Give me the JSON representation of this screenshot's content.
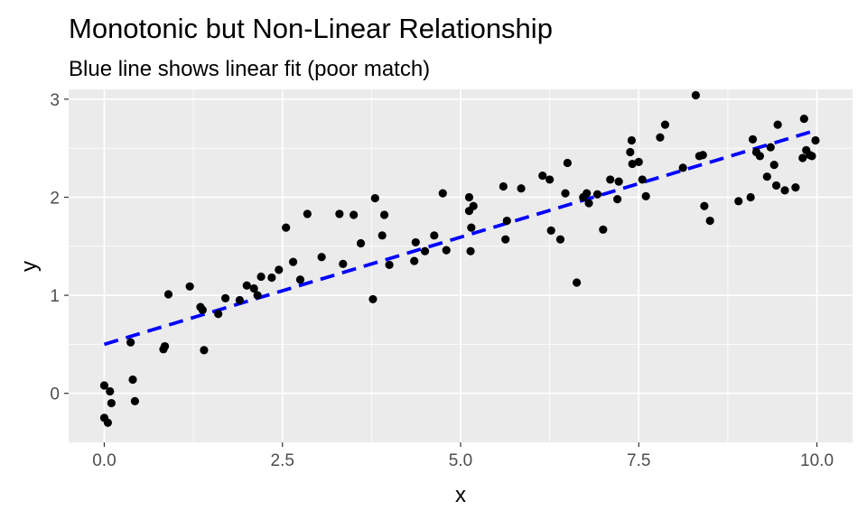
{
  "chart_data": {
    "type": "scatter",
    "title": "Monotonic but Non-Linear Relationship",
    "subtitle": "Blue line shows linear fit (poor match)",
    "xlabel": "x",
    "ylabel": "y",
    "xlim": [
      -0.5,
      10.5
    ],
    "ylim": [
      -0.5,
      3.1
    ],
    "x_ticks": [
      0.0,
      2.5,
      5.0,
      7.5,
      10.0
    ],
    "x_tick_labels": [
      "0.0",
      "2.5",
      "5.0",
      "7.5",
      "10.0"
    ],
    "y_ticks": [
      0,
      1,
      2,
      3
    ],
    "y_tick_labels": [
      "0",
      "1",
      "2",
      "3"
    ],
    "grid": true,
    "colors": {
      "points": "#000000",
      "fit_line": "#0000ff",
      "panel": "#ebebeb",
      "grid": "#ffffff"
    },
    "points": [
      {
        "x": 0.0,
        "y": 0.08
      },
      {
        "x": 0.0,
        "y": -0.25
      },
      {
        "x": 0.05,
        "y": -0.3
      },
      {
        "x": 0.08,
        "y": 0.02
      },
      {
        "x": 0.1,
        "y": -0.1
      },
      {
        "x": 0.37,
        "y": 0.52
      },
      {
        "x": 0.4,
        "y": 0.14
      },
      {
        "x": 0.43,
        "y": -0.08
      },
      {
        "x": 0.83,
        "y": 0.45
      },
      {
        "x": 0.85,
        "y": 0.48
      },
      {
        "x": 0.9,
        "y": 1.01
      },
      {
        "x": 1.2,
        "y": 1.09
      },
      {
        "x": 1.35,
        "y": 0.88
      },
      {
        "x": 1.38,
        "y": 0.85
      },
      {
        "x": 1.4,
        "y": 0.44
      },
      {
        "x": 1.6,
        "y": 0.81
      },
      {
        "x": 1.7,
        "y": 0.97
      },
      {
        "x": 1.9,
        "y": 0.95
      },
      {
        "x": 2.0,
        "y": 1.1
      },
      {
        "x": 2.1,
        "y": 1.07
      },
      {
        "x": 2.15,
        "y": 1.0
      },
      {
        "x": 2.2,
        "y": 1.19
      },
      {
        "x": 2.35,
        "y": 1.18
      },
      {
        "x": 2.45,
        "y": 1.26
      },
      {
        "x": 2.55,
        "y": 1.69
      },
      {
        "x": 2.65,
        "y": 1.34
      },
      {
        "x": 2.75,
        "y": 1.16
      },
      {
        "x": 2.85,
        "y": 1.83
      },
      {
        "x": 3.05,
        "y": 1.39
      },
      {
        "x": 3.3,
        "y": 1.83
      },
      {
        "x": 3.35,
        "y": 1.32
      },
      {
        "x": 3.5,
        "y": 1.82
      },
      {
        "x": 3.6,
        "y": 1.53
      },
      {
        "x": 3.77,
        "y": 0.96
      },
      {
        "x": 3.8,
        "y": 1.99
      },
      {
        "x": 3.9,
        "y": 1.61
      },
      {
        "x": 3.93,
        "y": 1.82
      },
      {
        "x": 4.0,
        "y": 1.31
      },
      {
        "x": 4.35,
        "y": 1.35
      },
      {
        "x": 4.37,
        "y": 1.54
      },
      {
        "x": 4.5,
        "y": 1.45
      },
      {
        "x": 4.63,
        "y": 1.61
      },
      {
        "x": 4.75,
        "y": 2.04
      },
      {
        "x": 4.8,
        "y": 1.46
      },
      {
        "x": 5.12,
        "y": 2.0
      },
      {
        "x": 5.12,
        "y": 1.86
      },
      {
        "x": 5.14,
        "y": 1.45
      },
      {
        "x": 5.15,
        "y": 1.69
      },
      {
        "x": 5.18,
        "y": 1.91
      },
      {
        "x": 5.6,
        "y": 2.11
      },
      {
        "x": 5.63,
        "y": 1.57
      },
      {
        "x": 5.65,
        "y": 1.76
      },
      {
        "x": 5.85,
        "y": 2.09
      },
      {
        "x": 6.15,
        "y": 2.22
      },
      {
        "x": 6.25,
        "y": 2.18
      },
      {
        "x": 6.27,
        "y": 1.66
      },
      {
        "x": 6.4,
        "y": 1.57
      },
      {
        "x": 6.47,
        "y": 2.04
      },
      {
        "x": 6.5,
        "y": 2.35
      },
      {
        "x": 6.63,
        "y": 1.13
      },
      {
        "x": 6.72,
        "y": 2.0
      },
      {
        "x": 6.77,
        "y": 2.04
      },
      {
        "x": 6.8,
        "y": 1.94
      },
      {
        "x": 6.92,
        "y": 2.03
      },
      {
        "x": 7.0,
        "y": 1.67
      },
      {
        "x": 7.1,
        "y": 2.18
      },
      {
        "x": 7.2,
        "y": 1.98
      },
      {
        "x": 7.22,
        "y": 2.16
      },
      {
        "x": 7.38,
        "y": 2.46
      },
      {
        "x": 7.4,
        "y": 2.58
      },
      {
        "x": 7.41,
        "y": 2.34
      },
      {
        "x": 7.5,
        "y": 2.36
      },
      {
        "x": 7.55,
        "y": 2.18
      },
      {
        "x": 7.6,
        "y": 2.01
      },
      {
        "x": 7.8,
        "y": 2.61
      },
      {
        "x": 7.87,
        "y": 2.74
      },
      {
        "x": 8.12,
        "y": 2.3
      },
      {
        "x": 8.3,
        "y": 3.04
      },
      {
        "x": 8.35,
        "y": 2.42
      },
      {
        "x": 8.4,
        "y": 2.43
      },
      {
        "x": 8.42,
        "y": 1.91
      },
      {
        "x": 8.5,
        "y": 1.76
      },
      {
        "x": 8.9,
        "y": 1.96
      },
      {
        "x": 9.07,
        "y": 2.0
      },
      {
        "x": 9.1,
        "y": 2.59
      },
      {
        "x": 9.15,
        "y": 2.46
      },
      {
        "x": 9.2,
        "y": 2.42
      },
      {
        "x": 9.3,
        "y": 2.21
      },
      {
        "x": 9.35,
        "y": 2.51
      },
      {
        "x": 9.4,
        "y": 2.33
      },
      {
        "x": 9.43,
        "y": 2.12
      },
      {
        "x": 9.45,
        "y": 2.74
      },
      {
        "x": 9.55,
        "y": 2.07
      },
      {
        "x": 9.7,
        "y": 2.1
      },
      {
        "x": 9.8,
        "y": 2.4
      },
      {
        "x": 9.82,
        "y": 2.8
      },
      {
        "x": 9.85,
        "y": 2.48
      },
      {
        "x": 9.9,
        "y": 2.43
      },
      {
        "x": 9.93,
        "y": 2.42
      },
      {
        "x": 9.98,
        "y": 2.58
      }
    ],
    "fit_line": {
      "style": "dashed",
      "x": [
        0.0,
        9.93
      ],
      "y": [
        0.5,
        2.67
      ]
    }
  }
}
